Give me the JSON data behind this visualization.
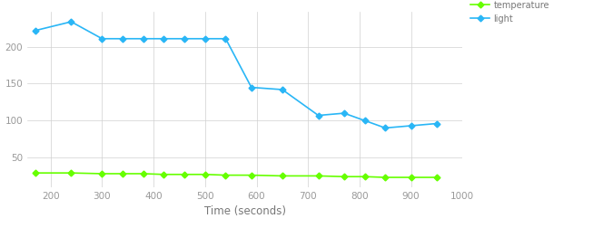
{
  "light_x": [
    170,
    240,
    300,
    340,
    380,
    420,
    460,
    500,
    540,
    590,
    650,
    720,
    770,
    810,
    850,
    900,
    950
  ],
  "light_y": [
    222,
    234,
    211,
    211,
    211,
    211,
    211,
    211,
    211,
    145,
    142,
    107,
    110,
    100,
    90,
    93,
    96
  ],
  "temp_x": [
    170,
    240,
    300,
    340,
    380,
    420,
    460,
    500,
    540,
    590,
    650,
    720,
    770,
    810,
    850,
    900,
    950
  ],
  "temp_y": [
    29,
    29,
    28,
    28,
    28,
    27,
    27,
    27,
    26,
    26,
    25,
    25,
    24,
    24,
    23,
    23,
    23
  ],
  "light_color": "#29b6f6",
  "temp_color": "#66ff00",
  "bg_color": "#ffffff",
  "grid_color": "#d0d0d0",
  "xlabel": "Time (seconds)",
  "xlim": [
    155,
    975
  ],
  "ylim": [
    10,
    248
  ],
  "yticks": [
    50,
    100,
    150,
    200
  ],
  "xticks": [
    200,
    300,
    400,
    500,
    600,
    700,
    800,
    900,
    1000
  ],
  "legend_labels": [
    "temperature",
    "light"
  ],
  "legend_colors": [
    "#66ff00",
    "#29b6f6"
  ],
  "marker": "D",
  "markersize": 3.5,
  "linewidth": 1.2,
  "tick_fontsize": 7.5,
  "label_fontsize": 8.5
}
